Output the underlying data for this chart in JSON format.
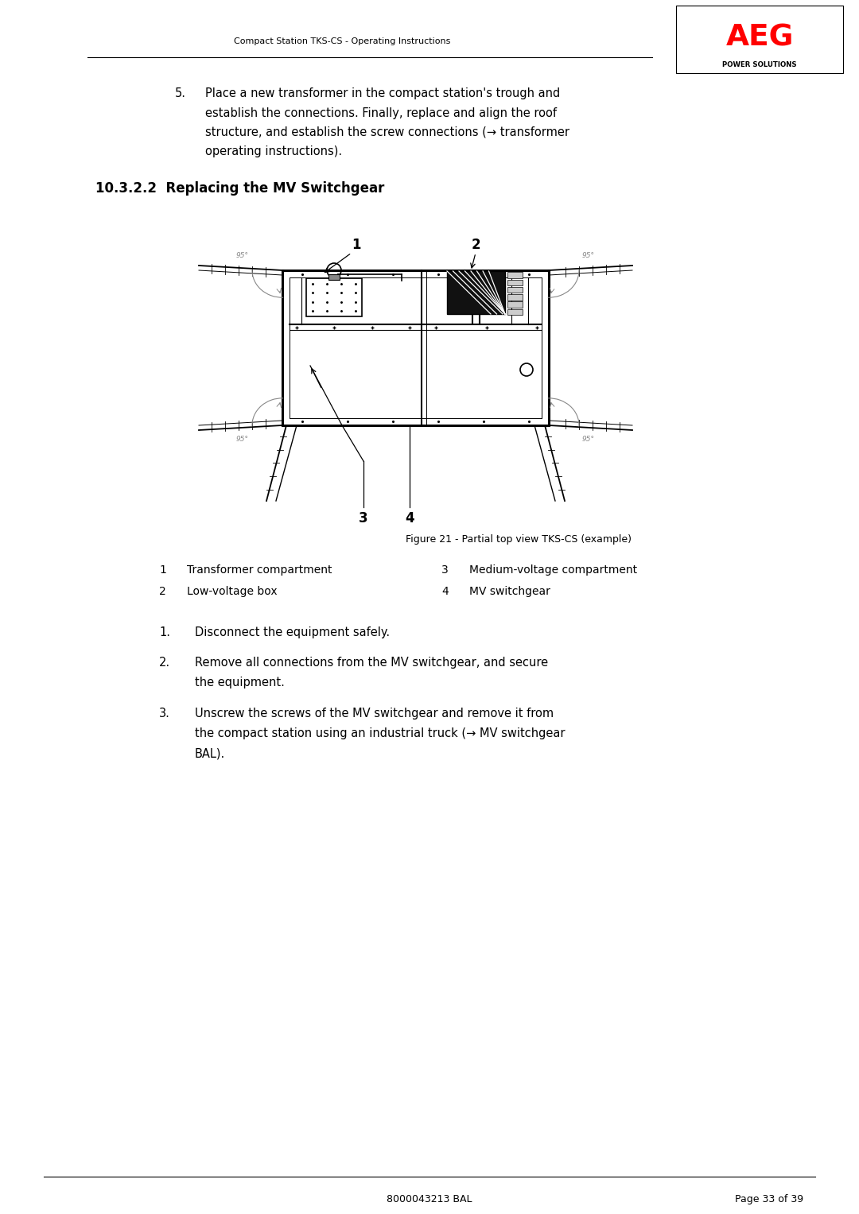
{
  "page_width": 10.8,
  "page_height": 15.27,
  "bg_color": "#ffffff",
  "header_text": "Compact Station TKS-CS - Operating Instructions",
  "footer_text_left": "8000043213 BAL",
  "footer_text_right": "Page 33 of 39",
  "aeg_logo_color": "#ff0000",
  "aeg_text": "AEG",
  "power_solutions_text": "POWER SOLUTIONS",
  "section_title": "10.3.2.2  Replacing the MV Switchgear",
  "figure_caption": "Figure 21 - Partial top view TKS-CS (example)",
  "legend": [
    [
      "1",
      "Transformer compartment",
      "3",
      "Medium-voltage compartment"
    ],
    [
      "2",
      "Low-voltage box",
      "4",
      "MV switchgear"
    ]
  ],
  "numbered_items": [
    "Disconnect the equipment safely.",
    "Remove all connections from the MV switchgear, and secure\nthe equipment.",
    "Unscrew the screws of the MV switchgear and remove it from\nthe compact station using an industrial truck (→ MV switchgear\nBAL)."
  ]
}
